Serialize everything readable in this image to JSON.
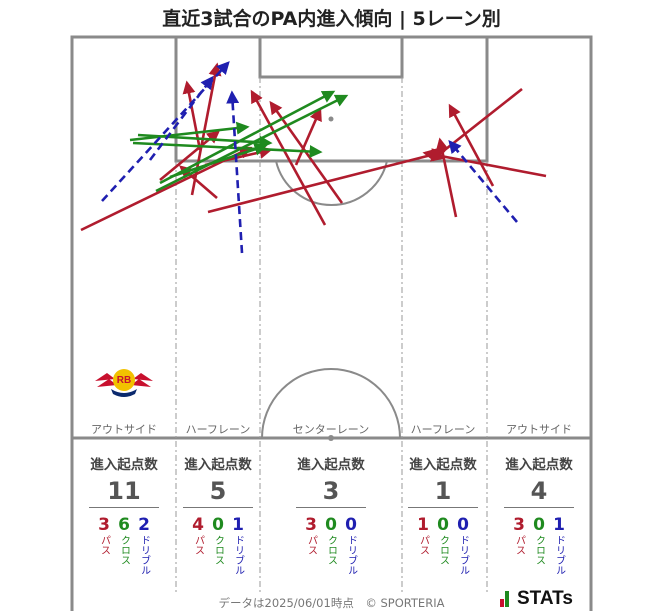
{
  "title": "直近3試合のPA内進入傾向 | 5レーン別",
  "colors": {
    "pass": "#b01c2e",
    "cross": "#1f8a1f",
    "dribble": "#1f1fb0",
    "pitch_line": "#888888"
  },
  "lanes": [
    {
      "name": "アウトサイド",
      "stat_label": "進入起点数",
      "total": "11",
      "pass": "3",
      "cross": "6",
      "dribble": "2"
    },
    {
      "name": "ハーフレーン",
      "stat_label": "進入起点数",
      "total": "5",
      "pass": "4",
      "cross": "0",
      "dribble": "1"
    },
    {
      "name": "センターレーン",
      "stat_label": "進入起点数",
      "total": "3",
      "pass": "3",
      "cross": "0",
      "dribble": "0"
    },
    {
      "name": "ハーフレーン",
      "stat_label": "進入起点数",
      "total": "1",
      "pass": "1",
      "cross": "0",
      "dribble": "0"
    },
    {
      "name": "アウトサイド",
      "stat_label": "進入起点数",
      "total": "4",
      "pass": "3",
      "cross": "0",
      "dribble": "1"
    }
  ],
  "legend_labels": {
    "pass": "パス",
    "cross": "クロス",
    "dribble": "ドリブル"
  },
  "logo_text": "RB",
  "footer": "データは2025/06/01時点　© SPORTERIA",
  "brand": "STATs"
}
